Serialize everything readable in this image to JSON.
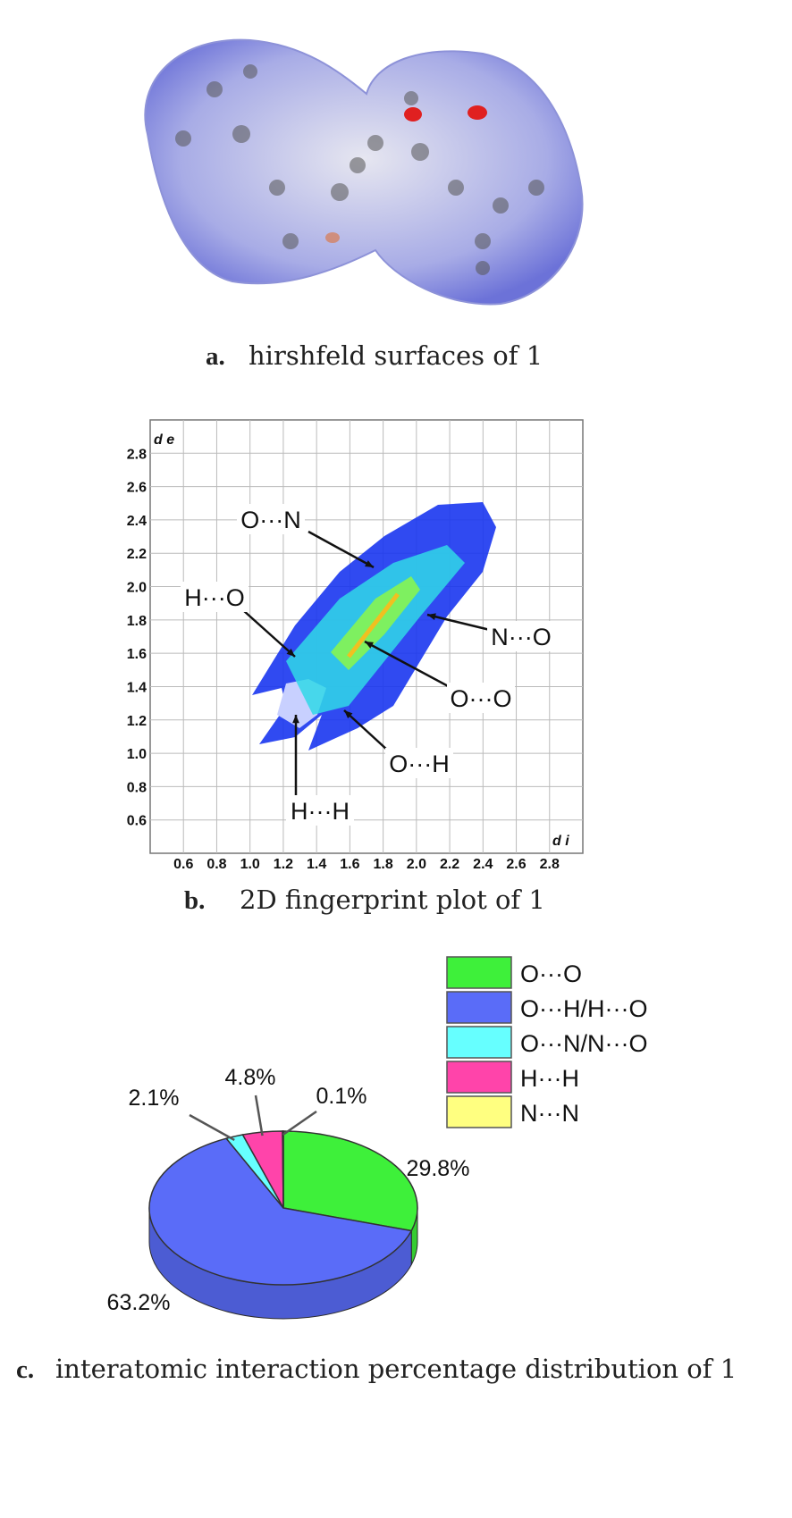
{
  "captions": [
    {
      "label": "a.",
      "text": "hirshfeld surfaces of 1"
    },
    {
      "label": "b.",
      "text": "2D fingerprint plot of 1"
    },
    {
      "label": "c.",
      "text": "interatomic interaction percentage distribution of 1"
    }
  ],
  "chart_data": [
    {
      "type": "fingerprint",
      "x_label": "d i",
      "y_label": "d e",
      "xlim": [
        0.4,
        3.0
      ],
      "ylim": [
        0.4,
        3.0
      ],
      "xticks": [
        0.6,
        0.8,
        {
          "value": 1,
          "label": "1.0"
        },
        1.2,
        1.4,
        1.6,
        1.8,
        {
          "value": 2,
          "label": "2.0"
        },
        2.2,
        2.4,
        2.6,
        2.8
      ],
      "yticks": [
        0.6,
        0.8,
        {
          "value": 1,
          "label": "1.0"
        },
        1.2,
        1.4,
        1.6,
        1.8,
        {
          "value": 2,
          "label": "2.0"
        },
        2.2,
        2.4,
        2.6,
        2.8
      ],
      "grid": true,
      "annotations": [
        "O···N",
        "H···O",
        "N···O",
        "O···O",
        "O···H",
        "H···H"
      ]
    },
    {
      "type": "pie",
      "categories": [
        "O···O",
        "O···H/H···O",
        "O···N/N···O",
        "H···H",
        "N···N"
      ],
      "colors": [
        "#3ef03a",
        "#5a6cf8",
        "#66ffff",
        "#ff44aa",
        "#ffff80"
      ],
      "values": [
        29.8,
        63.2,
        2.1,
        4.8,
        0.1
      ],
      "value_labels": [
        "29.8%",
        "63.2%",
        "2.1%",
        "4.8%",
        "0.1%"
      ],
      "legend": "top-right"
    }
  ]
}
